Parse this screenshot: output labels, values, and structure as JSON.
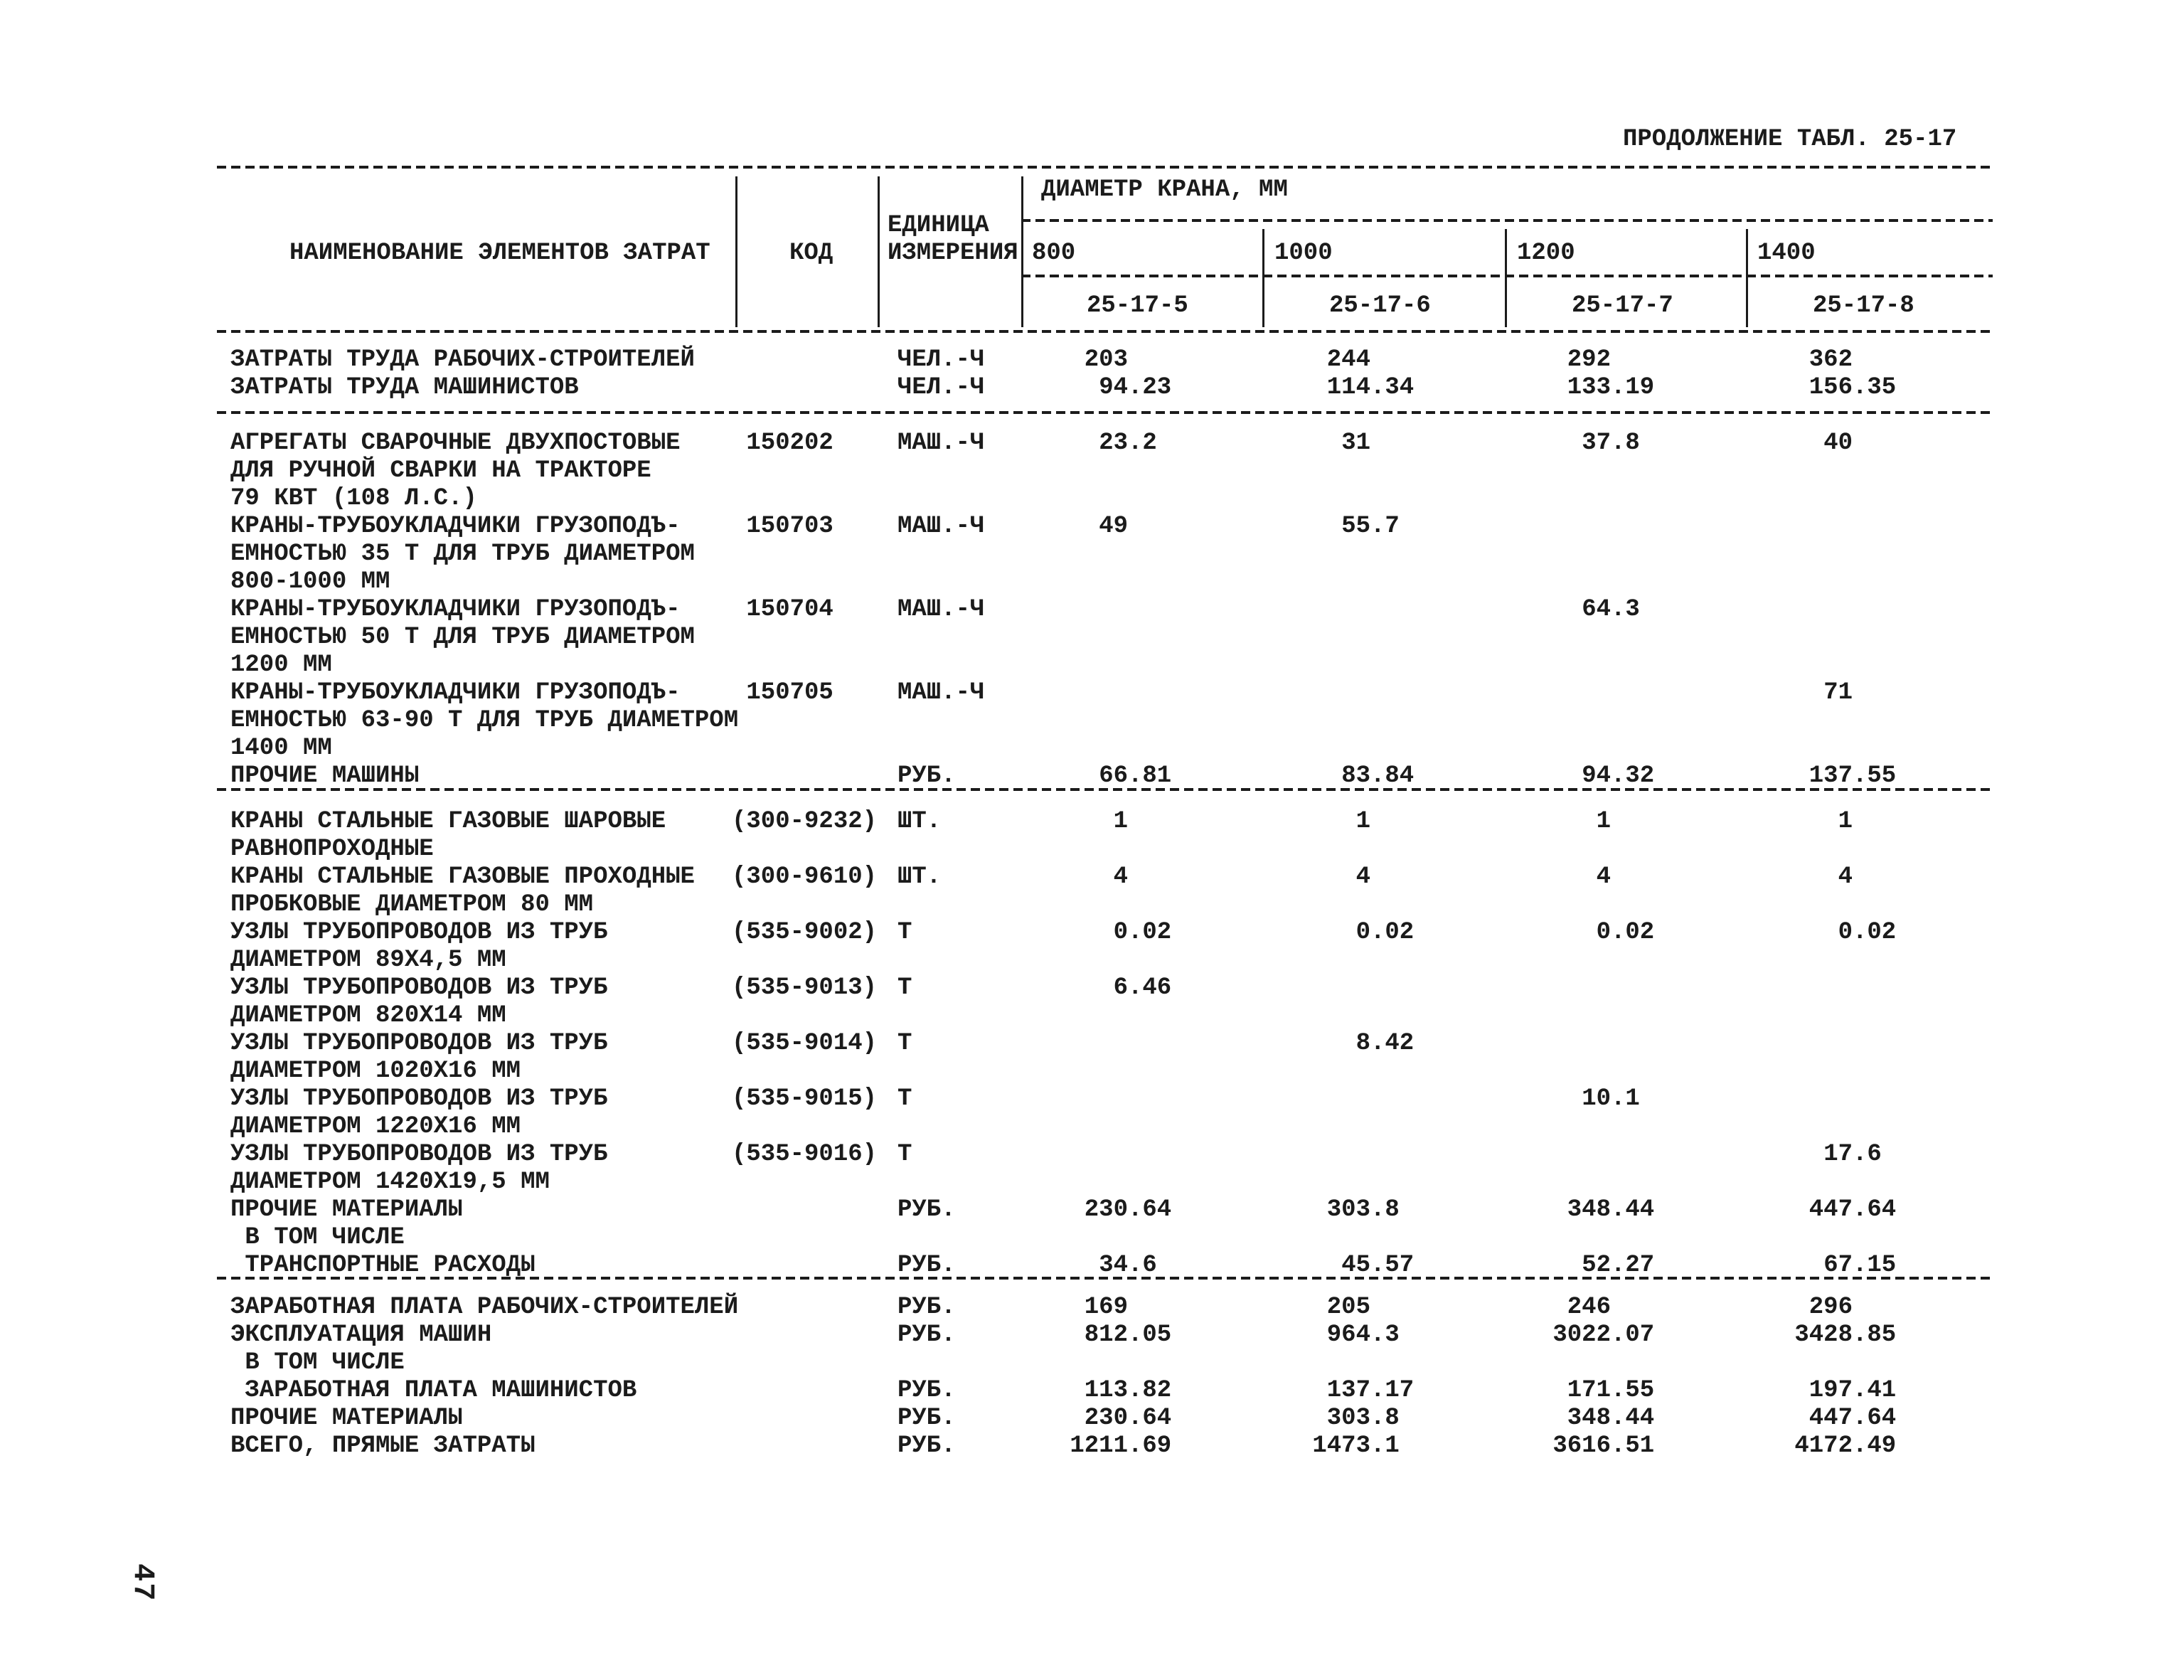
{
  "page": {
    "continuation_title": "ПРОДОЛЖЕНИЕ ТАБЛ. 25-17",
    "number": "47"
  },
  "table": {
    "header": {
      "name_col": "НАИМЕНОВАНИЕ ЭЛЕМЕНТОВ ЗАТРАТ",
      "code_col": "КОД",
      "unit_col_line1": "ЕДИНИЦА",
      "unit_col_line2": "ИЗМЕРЕНИЯ",
      "diameter_title": "ДИАМЕТР КРАНА, ММ",
      "diameters": [
        "800",
        "1000",
        "1200",
        "1400"
      ],
      "norm_codes": [
        "25-17-5",
        "25-17-6",
        "25-17-7",
        "25-17-8"
      ]
    },
    "sections": [
      {
        "rows": [
          {
            "name": [
              "ЗАТРАТЫ ТРУДА РАБОЧИХ-СТРОИТЕЛЕЙ"
            ],
            "code": "",
            "unit": "ЧЕЛ.-Ч",
            "values": [
              "203",
              "244",
              "292",
              "362"
            ]
          },
          {
            "name": [
              "ЗАТРАТЫ ТРУДА МАШИНИСТОВ"
            ],
            "code": "",
            "unit": "ЧЕЛ.-Ч",
            "values": [
              "94.23",
              "114.34",
              "133.19",
              "156.35"
            ]
          }
        ]
      },
      {
        "rows": [
          {
            "name": [
              "АГРЕГАТЫ СВАРОЧНЫЕ ДВУХПОСТОВЫЕ",
              "ДЛЯ РУЧНОЙ СВАРКИ НА ТРАКТОРЕ",
              "79 КВТ (108 Л.С.)"
            ],
            "code": "150202",
            "unit": "МАШ.-Ч",
            "values": [
              "23.2",
              "31",
              "37.8",
              "40"
            ]
          },
          {
            "name": [
              "КРАНЫ-ТРУБОУКЛАДЧИКИ ГРУЗОПОДЪ-",
              "ЕМНОСТЬЮ 35 Т ДЛЯ ТРУБ ДИАМЕТРОМ",
              "800-1000 ММ"
            ],
            "code": "150703",
            "unit": "МАШ.-Ч",
            "values": [
              "49",
              "55.7",
              "",
              ""
            ]
          },
          {
            "name": [
              "КРАНЫ-ТРУБОУКЛАДЧИКИ ГРУЗОПОДЪ-",
              "ЕМНОСТЬЮ 50 Т ДЛЯ ТРУБ ДИАМЕТРОМ",
              "1200 ММ"
            ],
            "code": "150704",
            "unit": "МАШ.-Ч",
            "values": [
              "",
              "",
              "64.3",
              ""
            ]
          },
          {
            "name": [
              "КРАНЫ-ТРУБОУКЛАДЧИКИ ГРУЗОПОДЪ-",
              "ЕМНОСТЬЮ 63-90 Т ДЛЯ ТРУБ ДИАМЕТРОМ",
              "1400 ММ"
            ],
            "code": "150705",
            "unit": "МАШ.-Ч",
            "values": [
              "",
              "",
              "",
              "71"
            ]
          },
          {
            "name": [
              "ПРОЧИЕ МАШИНЫ"
            ],
            "code": "",
            "unit": "РУБ.",
            "values": [
              "66.81",
              "83.84",
              "94.32",
              "137.55"
            ]
          }
        ]
      },
      {
        "rows": [
          {
            "name": [
              "КРАНЫ СТАЛЬНЫЕ ГАЗОВЫЕ ШАРОВЫЕ",
              "РАВНОПРОХОДНЫЕ"
            ],
            "code": "(300-9232)",
            "unit": "ШТ.",
            "values": [
              "1",
              "1",
              "1",
              "1"
            ]
          },
          {
            "name": [
              "КРАНЫ СТАЛЬНЫЕ ГАЗОВЫЕ ПРОХОДНЫЕ",
              "ПРОБКОВЫЕ ДИАМЕТРОМ 80 ММ"
            ],
            "code": "(300-9610)",
            "unit": "ШТ.",
            "values": [
              "4",
              "4",
              "4",
              "4"
            ]
          },
          {
            "name": [
              "УЗЛЫ ТРУБОПРОВОДОВ ИЗ ТРУБ",
              "ДИАМЕТРОМ 89Х4,5 ММ"
            ],
            "code": "(535-9002)",
            "unit": "Т",
            "values": [
              "0.02",
              "0.02",
              "0.02",
              "0.02"
            ]
          },
          {
            "name": [
              "УЗЛЫ ТРУБОПРОВОДОВ ИЗ ТРУБ",
              "ДИАМЕТРОМ 820Х14 ММ"
            ],
            "code": "(535-9013)",
            "unit": "Т",
            "values": [
              "6.46",
              "",
              "",
              ""
            ]
          },
          {
            "name": [
              "УЗЛЫ ТРУБОПРОВОДОВ ИЗ ТРУБ",
              "ДИАМЕТРОМ 1020Х16 ММ"
            ],
            "code": "(535-9014)",
            "unit": "Т",
            "values": [
              "",
              "8.42",
              "",
              ""
            ]
          },
          {
            "name": [
              "УЗЛЫ ТРУБОПРОВОДОВ ИЗ ТРУБ",
              "ДИАМЕТРОМ 1220Х16 ММ"
            ],
            "code": "(535-9015)",
            "unit": "Т",
            "values": [
              "",
              "",
              "10.1",
              ""
            ]
          },
          {
            "name": [
              "УЗЛЫ ТРУБОПРОВОДОВ ИЗ ТРУБ",
              "ДИАМЕТРОМ 1420Х19,5 ММ"
            ],
            "code": "(535-9016)",
            "unit": "Т",
            "values": [
              "",
              "",
              "",
              "17.6"
            ]
          },
          {
            "name": [
              "ПРОЧИЕ МАТЕРИАЛЫ"
            ],
            "code": "",
            "unit": "РУБ.",
            "values": [
              "230.64",
              "303.8",
              "348.44",
              "447.64"
            ]
          },
          {
            "name": [
              " В ТОМ ЧИСЛЕ"
            ],
            "code": "",
            "unit": "",
            "values": [
              "",
              "",
              "",
              ""
            ]
          },
          {
            "name": [
              " ТРАНСПОРТНЫЕ РАСХОДЫ"
            ],
            "code": "",
            "unit": "РУБ.",
            "values": [
              "34.6",
              "45.57",
              "52.27",
              "67.15"
            ]
          }
        ]
      },
      {
        "rows": [
          {
            "name": [
              "ЗАРАБОТНАЯ ПЛАТА РАБОЧИХ-СТРОИТЕЛЕЙ"
            ],
            "code": "",
            "unit": "РУБ.",
            "values": [
              "169",
              "205",
              "246",
              "296"
            ]
          },
          {
            "name": [
              "ЭКСПЛУАТАЦИЯ МАШИН"
            ],
            "code": "",
            "unit": "РУБ.",
            "values": [
              "812.05",
              "964.3",
              "3022.07",
              "3428.85"
            ]
          },
          {
            "name": [
              " В ТОМ ЧИСЛЕ"
            ],
            "code": "",
            "unit": "",
            "values": [
              "",
              "",
              "",
              ""
            ]
          },
          {
            "name": [
              " ЗАРАБОТНАЯ ПЛАТА МАШИНИСТОВ"
            ],
            "code": "",
            "unit": "РУБ.",
            "values": [
              "113.82",
              "137.17",
              "171.55",
              "197.41"
            ]
          },
          {
            "name": [
              "ПРОЧИЕ МАТЕРИАЛЫ"
            ],
            "code": "",
            "unit": "РУБ.",
            "values": [
              "230.64",
              "303.8",
              "348.44",
              "447.64"
            ]
          },
          {
            "name": [
              "ВСЕГО, ПРЯМЫЕ ЗАТРАТЫ"
            ],
            "code": "",
            "unit": "РУБ.",
            "values": [
              "1211.69",
              "1473.1",
              "3616.51",
              "4172.49"
            ]
          }
        ]
      }
    ]
  }
}
